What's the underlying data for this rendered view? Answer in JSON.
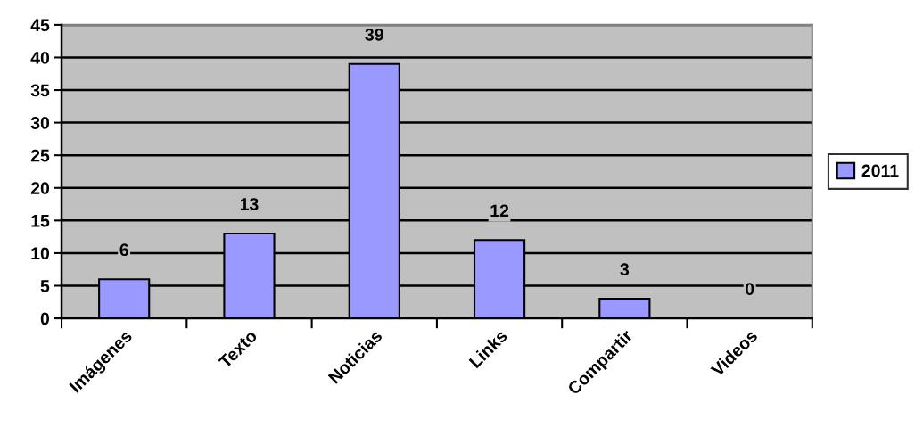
{
  "chart_data": {
    "type": "bar",
    "categories": [
      "Imágenes",
      "Texto",
      "Noticias",
      "Links",
      "Compartir",
      "Videos"
    ],
    "series": [
      {
        "name": "2011",
        "color": "#9999ff",
        "values": [
          6,
          13,
          39,
          12,
          3,
          0
        ]
      }
    ],
    "ylim": [
      0,
      45
    ],
    "yticks": [
      0,
      5,
      10,
      15,
      20,
      25,
      30,
      35,
      40,
      45
    ],
    "grid": "y",
    "legend": "right",
    "data_labels": true
  }
}
